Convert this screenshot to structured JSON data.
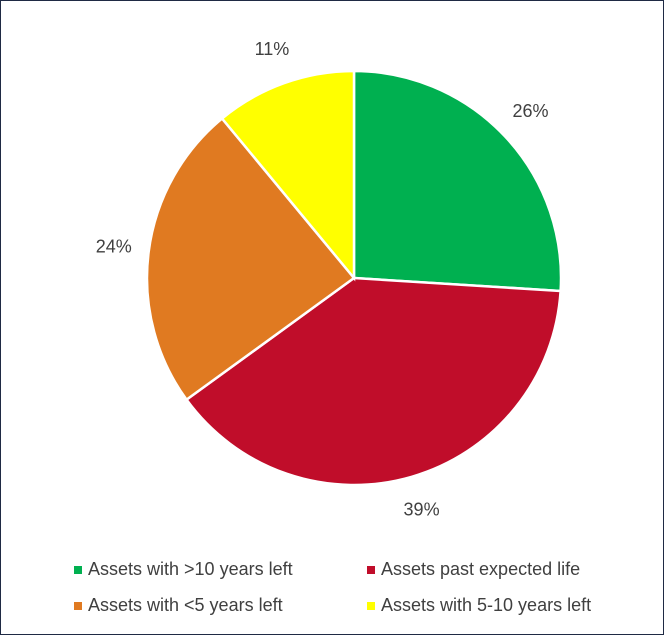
{
  "chart_data": {
    "type": "pie",
    "categories": [
      "Assets with >10 years left",
      "Assets past expected life",
      "Assets with <5 years left",
      "Assets with 5-10 years left"
    ],
    "values": [
      26,
      39,
      24,
      11
    ],
    "value_labels": [
      "26%",
      "39%",
      "24%",
      "11%"
    ],
    "colors": [
      "#00b050",
      "#c00d2a",
      "#e07a21",
      "#ffff00"
    ],
    "legend": "bottom"
  }
}
